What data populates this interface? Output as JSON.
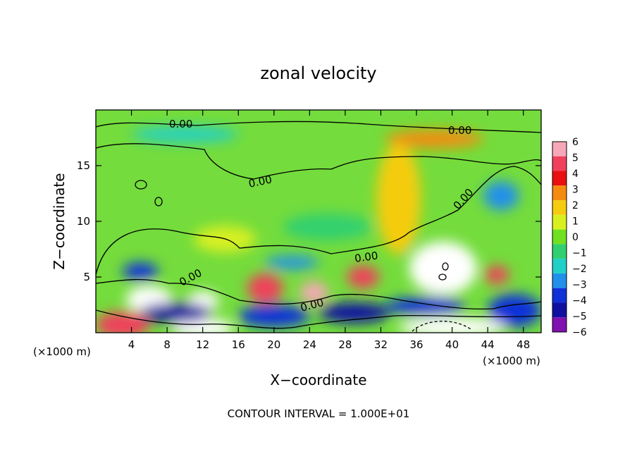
{
  "chart_data": {
    "type": "heatmap",
    "title": "zonal velocity",
    "xlabel": "X−coordinate",
    "ylabel": "Z−coordinate",
    "x_unit_left": "(×1000 m)",
    "x_unit_right": "(×1000 m)",
    "footer": "CONTOUR INTERVAL = 1.000E+01",
    "xlim": [
      0,
      50
    ],
    "ylim": [
      0,
      20
    ],
    "x_ticks": [
      4,
      8,
      12,
      16,
      20,
      24,
      28,
      32,
      36,
      40,
      44,
      48
    ],
    "y_ticks": [
      5,
      10,
      15
    ],
    "contour_labels": [
      "0.00",
      "0.00",
      "0.00",
      "0.00",
      "0.00",
      "0.00",
      "0.00"
    ],
    "colorbar": {
      "labels": [
        "6",
        "5",
        "4",
        "3",
        "2",
        "1",
        "0",
        "−1",
        "−2",
        "−3",
        "−4",
        "−5",
        "−6"
      ],
      "colors": [
        "#f7a8b8",
        "#f0405c",
        "#e81010",
        "#f58c10",
        "#f5cc10",
        "#d8f020",
        "#70e020",
        "#30d070",
        "#20d0c8",
        "#2090ea",
        "#1030d8",
        "#1010a0",
        "#8010b0"
      ]
    },
    "field": {
      "background": "#74dc3c",
      "features": [
        {
          "x": 3,
          "z": 0.7,
          "w": 3,
          "h": 1.2,
          "v": 5.5
        },
        {
          "x": 6,
          "z": 3.0,
          "w": 2.6,
          "h": 1.2,
          "v": 8
        },
        {
          "x": 12,
          "z": 2.8,
          "w": 1.8,
          "h": 0.9,
          "v": 8
        },
        {
          "x": 12,
          "z": 0.4,
          "w": 3.5,
          "h": 0.9,
          "v": 8
        },
        {
          "x": 19,
          "z": 4.0,
          "w": 2.0,
          "h": 1.3,
          "v": 5
        },
        {
          "x": 24.5,
          "z": 3.6,
          "w": 1.6,
          "h": 1.0,
          "v": 6
        },
        {
          "x": 30,
          "z": 5.0,
          "w": 1.8,
          "h": 1.0,
          "v": 5
        },
        {
          "x": 39,
          "z": 5.8,
          "w": 3.8,
          "h": 2.4,
          "v": 8
        },
        {
          "x": 45,
          "z": 5.2,
          "w": 1.4,
          "h": 0.8,
          "v": 5
        },
        {
          "x": 38,
          "z": 17.4,
          "w": 5.5,
          "h": 0.8,
          "v": 3
        },
        {
          "x": 34,
          "z": 12.0,
          "w": 2.5,
          "h": 5.0,
          "v": 2
        },
        {
          "x": 14.5,
          "z": 8.4,
          "w": 3.5,
          "h": 1.2,
          "v": 1.2
        },
        {
          "x": 26,
          "z": 9.5,
          "w": 5.0,
          "h": 1.2,
          "v": -1.2
        },
        {
          "x": 10,
          "z": 17.8,
          "w": 6.0,
          "h": 0.7,
          "v": -1.5
        },
        {
          "x": 45.5,
          "z": 12.3,
          "w": 2.0,
          "h": 1.3,
          "v": -3
        },
        {
          "x": 5,
          "z": 5.5,
          "w": 2.0,
          "h": 0.8,
          "v": -3.5
        },
        {
          "x": 9,
          "z": 1.8,
          "w": 4.0,
          "h": 0.9,
          "v": -5
        },
        {
          "x": 20,
          "z": 1.5,
          "w": 4.0,
          "h": 1.0,
          "v": -4
        },
        {
          "x": 22,
          "z": 6.3,
          "w": 3.0,
          "h": 0.6,
          "v": -3
        },
        {
          "x": 29,
          "z": 1.8,
          "w": 4.0,
          "h": 0.9,
          "v": -4.5
        },
        {
          "x": 37,
          "z": 2.4,
          "w": 4.5,
          "h": 0.8,
          "v": -3.5
        },
        {
          "x": 47,
          "z": 2.0,
          "w": 3.0,
          "h": 1.5,
          "v": -3.5
        },
        {
          "x": 40,
          "z": 0.5,
          "w": 6.0,
          "h": 0.9,
          "v": 8
        }
      ]
    }
  }
}
